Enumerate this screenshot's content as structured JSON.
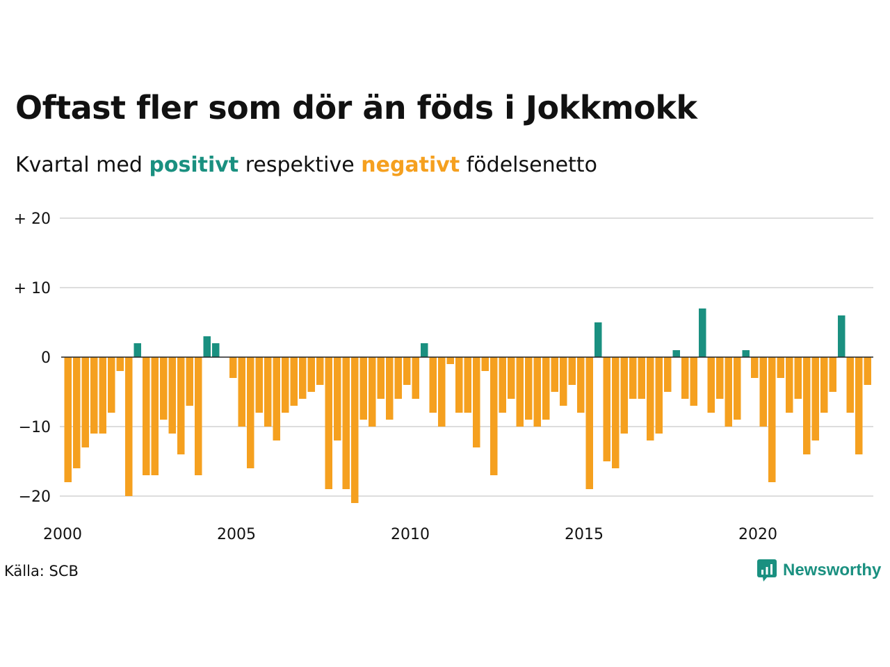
{
  "title": "Oftast fler som dör än föds i Jokkmokk",
  "subtitle": {
    "pre": "Kvartal med",
    "positive": "positivt",
    "mid": "respektive",
    "negative": "negativt",
    "post": "födelsenetto"
  },
  "source": "Källa: SCB",
  "brand": "Newsworthy",
  "colors": {
    "positive": "#1a9080",
    "negative": "#f5a01f",
    "grid": "#dddddd",
    "zero_line": "#222222"
  },
  "chart_data": {
    "type": "bar",
    "x_start": "2000 Q1",
    "frequency": "quarterly",
    "values": [
      -18,
      -16,
      -13,
      -11,
      -11,
      -8,
      -2,
      -20,
      2,
      -17,
      -17,
      -9,
      -11,
      -14,
      -7,
      -17,
      3,
      2,
      0,
      -3,
      -10,
      -16,
      -8,
      -10,
      -12,
      -8,
      -7,
      -6,
      -5,
      -4,
      -19,
      -12,
      -19,
      -21,
      -9,
      -10,
      -6,
      -9,
      -6,
      -4,
      -6,
      2,
      -8,
      -10,
      -1,
      -8,
      -8,
      -13,
      -2,
      -17,
      -8,
      -6,
      -10,
      -9,
      -10,
      -9,
      -5,
      -7,
      -4,
      -8,
      -19,
      5,
      -15,
      -16,
      -11,
      -6,
      -6,
      -12,
      -11,
      -5,
      1,
      -6,
      -7,
      7,
      -8,
      -6,
      -10,
      -9,
      1,
      -3,
      -10,
      -18,
      -3,
      -8,
      -6,
      -14,
      -12,
      -8,
      -5,
      6,
      -8,
      -14,
      -4
    ],
    "xlim": [
      "2000",
      "2023"
    ],
    "ylim": [
      -22,
      21
    ],
    "yticks": [
      {
        "value": 20,
        "label": "+ 20"
      },
      {
        "value": 10,
        "label": "+ 10"
      },
      {
        "value": 0,
        "label": "0"
      },
      {
        "value": -10,
        "label": "−10"
      },
      {
        "value": -20,
        "label": "−20"
      }
    ],
    "xticks": [
      {
        "year": 2000,
        "label": "2000"
      },
      {
        "year": 2005,
        "label": "2005"
      },
      {
        "year": 2010,
        "label": "2010"
      },
      {
        "year": 2015,
        "label": "2015"
      },
      {
        "year": 2020,
        "label": "2020"
      }
    ],
    "grid": true,
    "legend": "none"
  }
}
